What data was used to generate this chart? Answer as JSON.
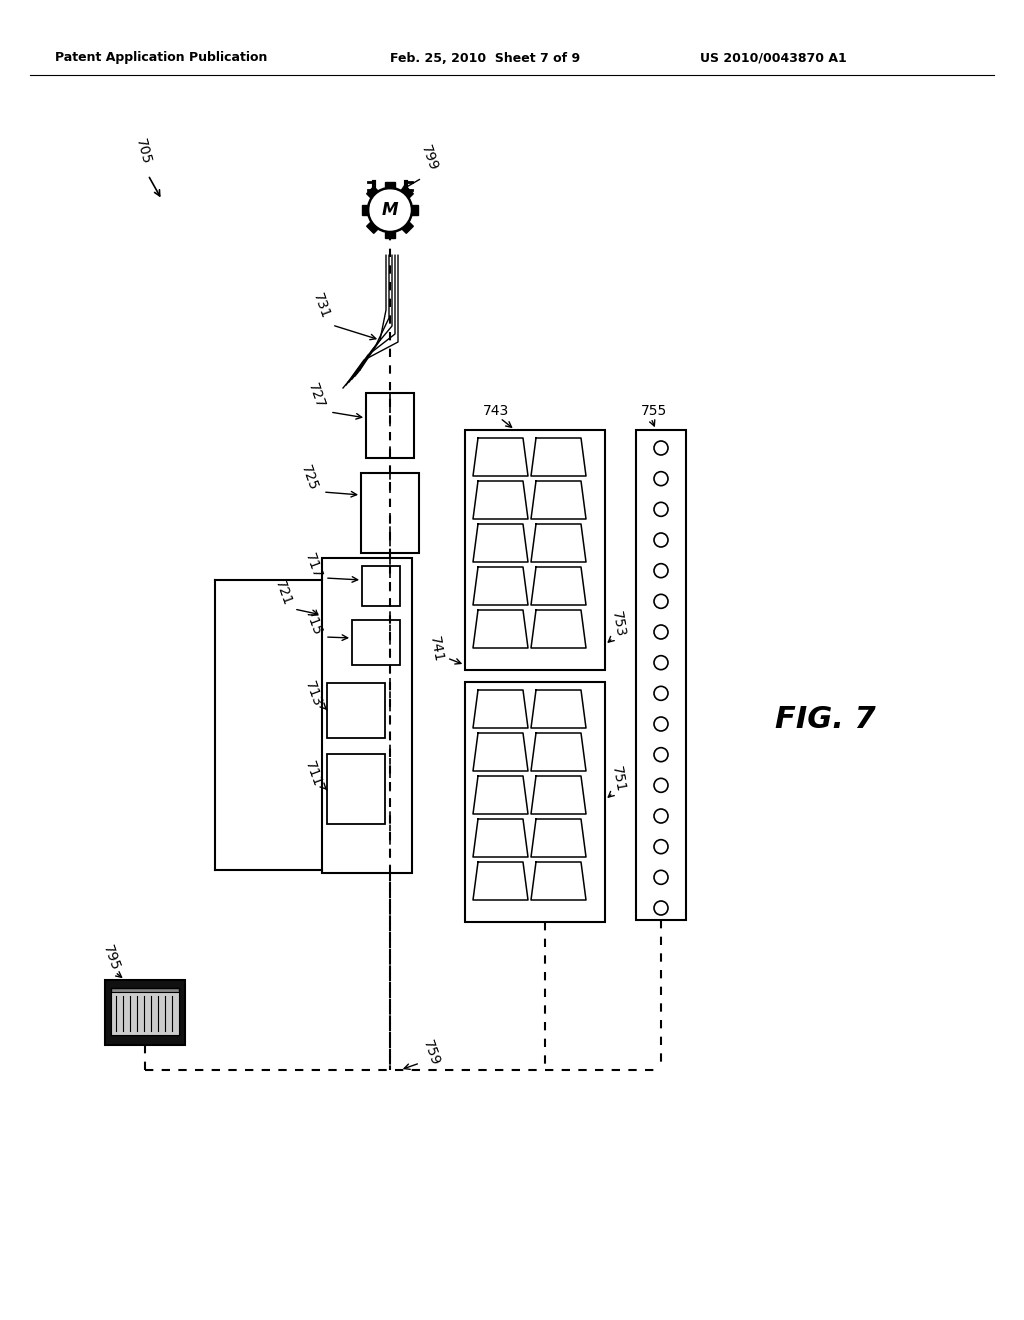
{
  "bg_color": "#ffffff",
  "title_left": "Patent Application Publication",
  "title_mid": "Feb. 25, 2010  Sheet 7 of 9",
  "title_right": "US 2010/0043870 A1",
  "fig_label": "FIG. 7"
}
